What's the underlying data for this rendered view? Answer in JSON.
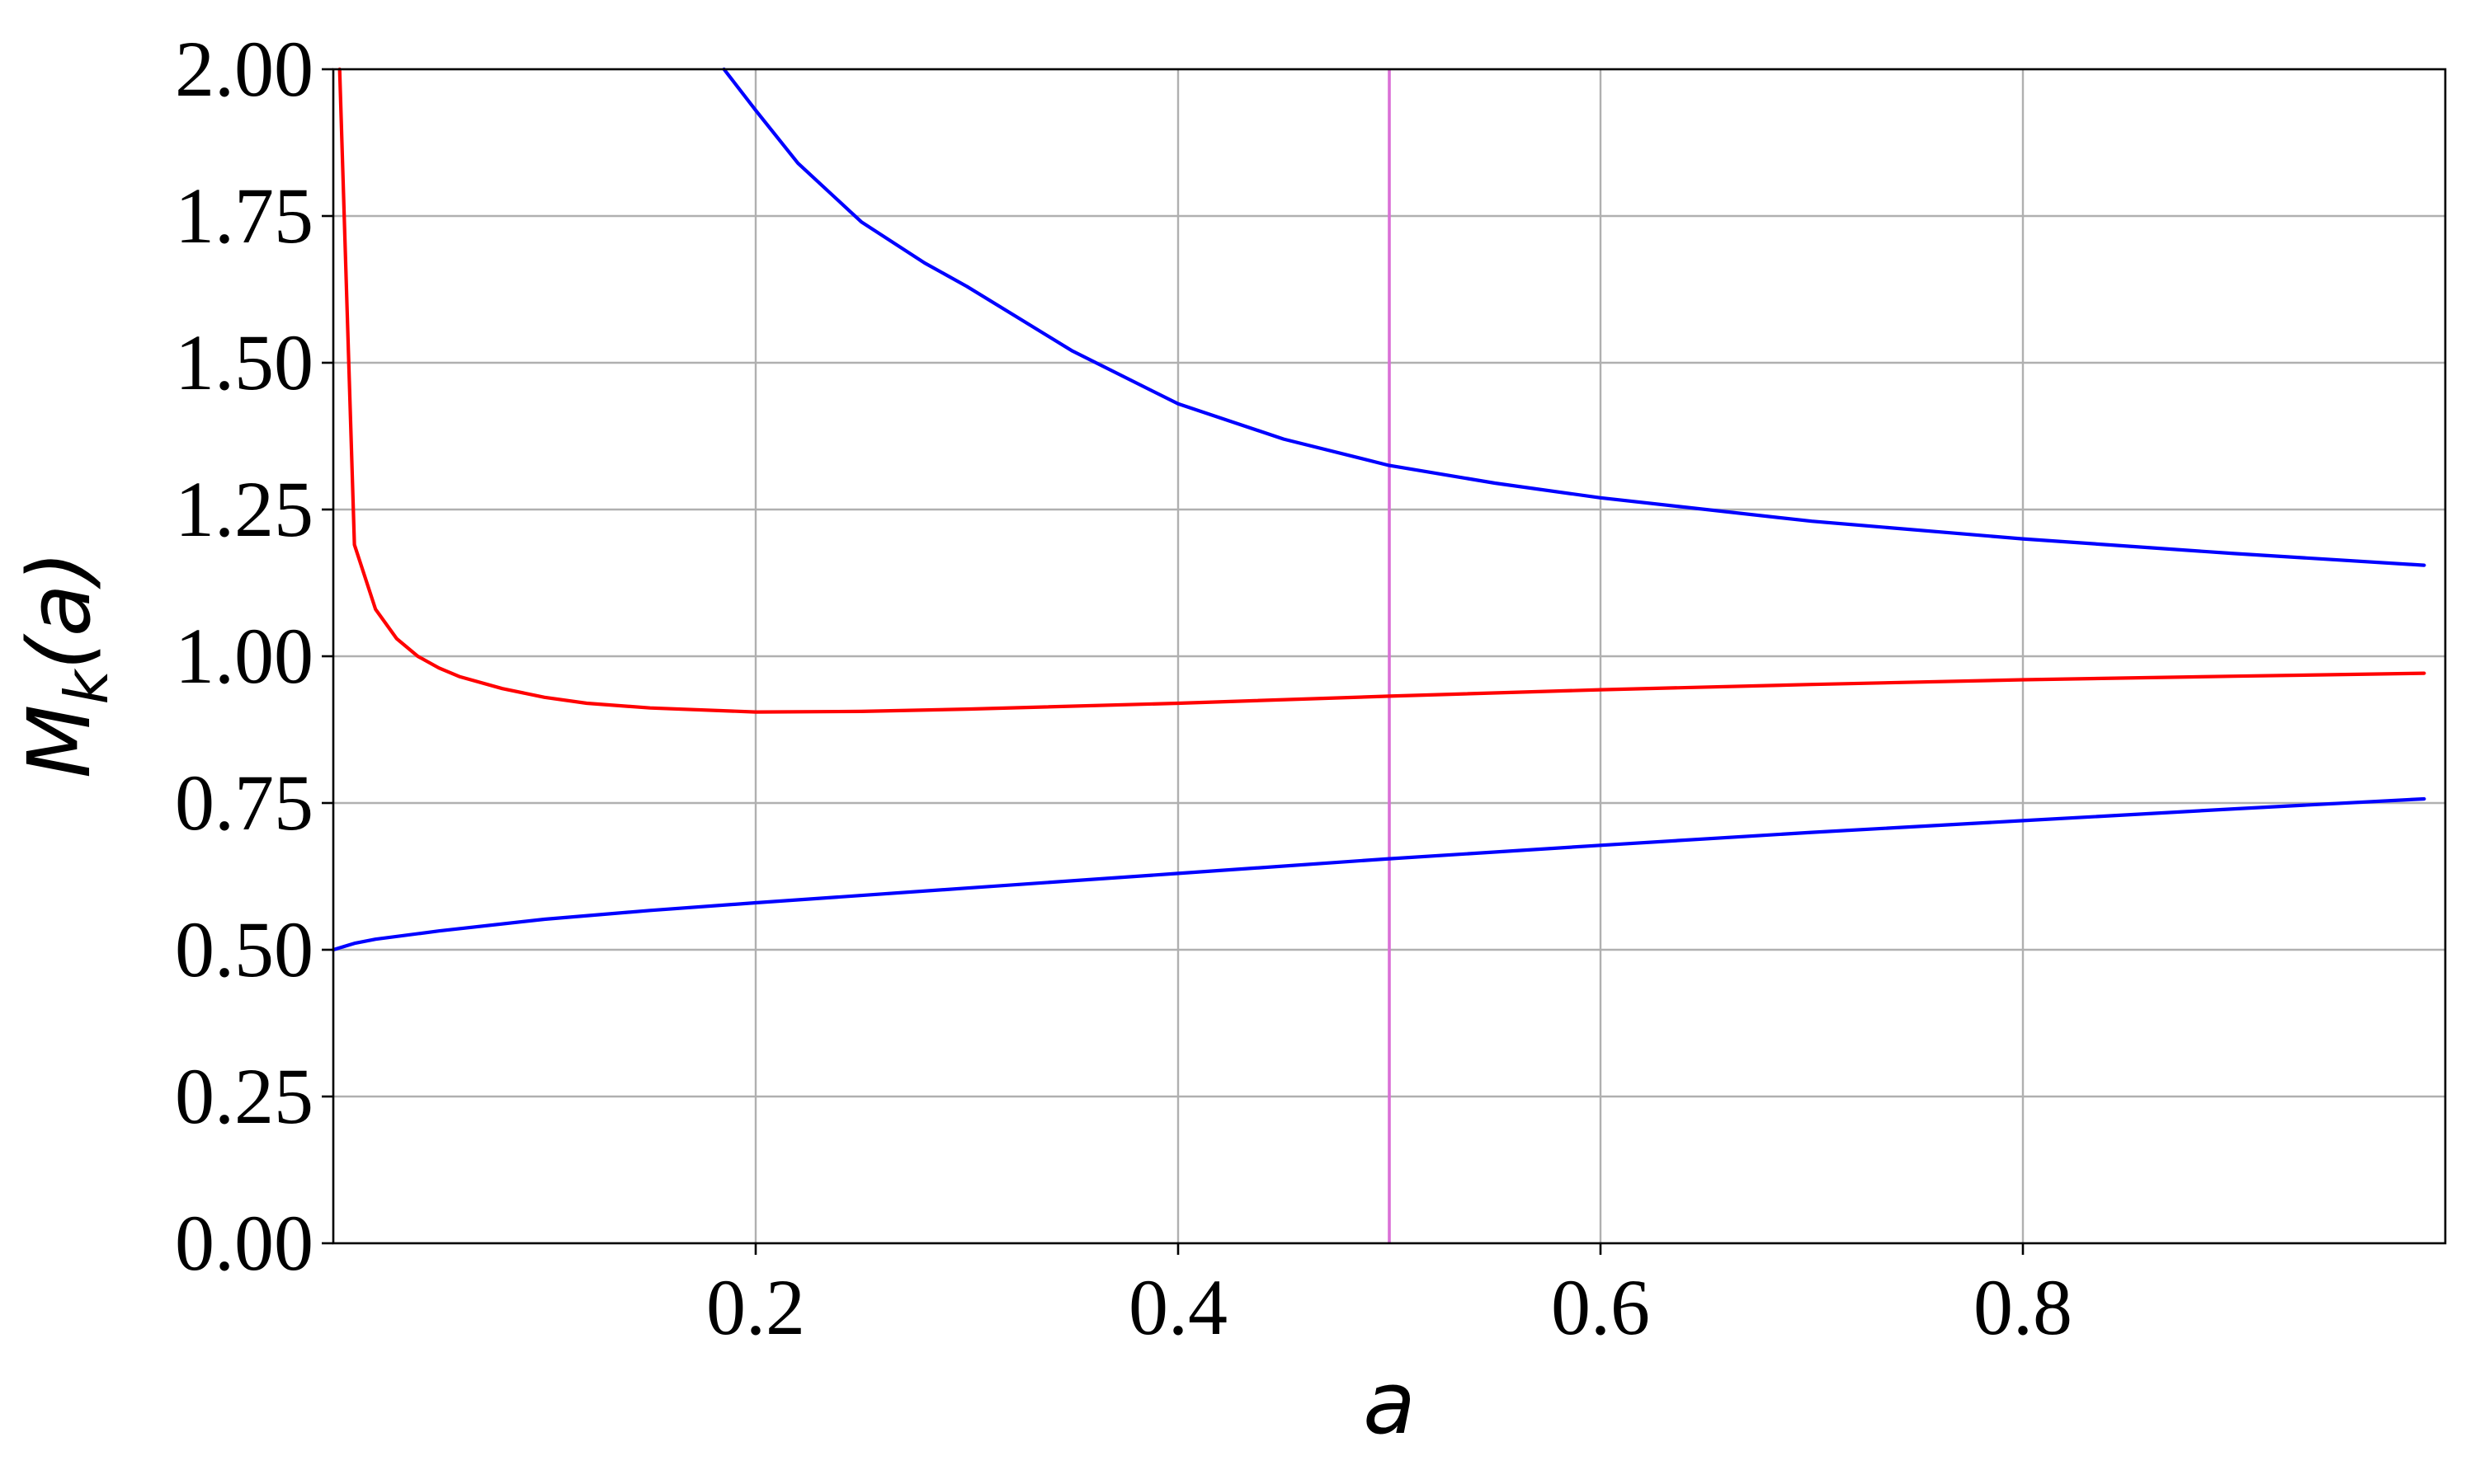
{
  "chart_data": {
    "type": "line",
    "title": "",
    "xlabel": "a",
    "ylabel_main": "M",
    "ylabel_sub": "k",
    "ylabel_tail": "(a)",
    "xlim": [
      0.0,
      1.0
    ],
    "ylim": [
      0.0,
      2.0
    ],
    "grid": true,
    "legend": "none",
    "x_ticks": [
      {
        "value": 0.2,
        "label": "0.2"
      },
      {
        "value": 0.4,
        "label": "0.4"
      },
      {
        "value": 0.6,
        "label": "0.6"
      },
      {
        "value": 0.8,
        "label": "0.8"
      }
    ],
    "y_ticks": [
      {
        "value": 0.0,
        "label": "0.00"
      },
      {
        "value": 0.25,
        "label": "0.25"
      },
      {
        "value": 0.5,
        "label": "0.50"
      },
      {
        "value": 0.75,
        "label": "0.75"
      },
      {
        "value": 1.0,
        "label": "1.00"
      },
      {
        "value": 1.25,
        "label": "1.25"
      },
      {
        "value": 1.5,
        "label": "1.50"
      },
      {
        "value": 1.75,
        "label": "1.75"
      },
      {
        "value": 2.0,
        "label": "2.00"
      }
    ],
    "vertical_lines": [
      {
        "x": 0.5,
        "color": "#da70d6"
      }
    ],
    "series": [
      {
        "color": "#ff0000",
        "x": [
          0.003,
          0.01,
          0.02,
          0.03,
          0.04,
          0.05,
          0.06,
          0.08,
          0.1,
          0.12,
          0.15,
          0.2,
          0.25,
          0.3,
          0.4,
          0.5,
          0.6,
          0.7,
          0.8,
          0.9,
          0.99
        ],
        "y": [
          2.0,
          1.19,
          1.08,
          1.03,
          1.0,
          0.98,
          0.965,
          0.945,
          0.93,
          0.92,
          0.912,
          0.905,
          0.906,
          0.91,
          0.92,
          0.932,
          0.943,
          0.952,
          0.96,
          0.966,
          0.971
        ]
      },
      {
        "color": "#0000ff",
        "x": [
          0.185,
          0.2,
          0.22,
          0.25,
          0.28,
          0.3,
          0.35,
          0.4,
          0.45,
          0.5,
          0.55,
          0.6,
          0.7,
          0.8,
          0.9,
          0.99
        ],
        "y": [
          2.0,
          1.93,
          1.84,
          1.74,
          1.67,
          1.63,
          1.52,
          1.43,
          1.37,
          1.325,
          1.295,
          1.27,
          1.23,
          1.2,
          1.175,
          1.155
        ]
      },
      {
        "color": "#0000ff",
        "x": [
          0.0,
          0.01,
          0.02,
          0.05,
          0.1,
          0.15,
          0.2,
          0.3,
          0.4,
          0.5,
          0.6,
          0.7,
          0.8,
          0.9,
          0.99
        ],
        "y": [
          0.5,
          0.511,
          0.518,
          0.532,
          0.552,
          0.567,
          0.58,
          0.605,
          0.63,
          0.655,
          0.678,
          0.7,
          0.72,
          0.74,
          0.757
        ]
      }
    ]
  }
}
